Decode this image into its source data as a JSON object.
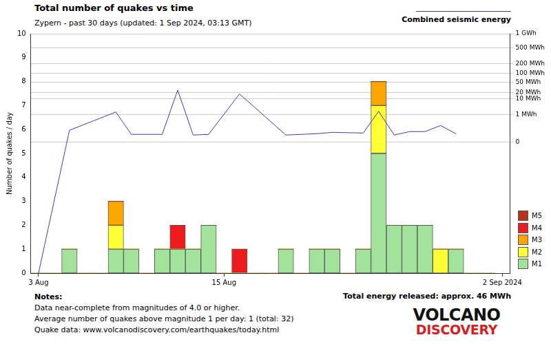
{
  "chart_data": {
    "type": "bar",
    "title": "Total number of quakes vs time",
    "subtitle": "Zypern - past 30 days (updated: 1 Sep 2024, 03:13 GMT)",
    "y_label": "Number of quakes / day",
    "categories": [
      "3 Aug",
      null,
      null,
      null,
      null,
      null,
      null,
      null,
      null,
      null,
      null,
      null,
      "15 Aug",
      null,
      null,
      null,
      null,
      null,
      null,
      null,
      null,
      null,
      null,
      null,
      null,
      null,
      null,
      null,
      null,
      null,
      "2 Sep 2024"
    ],
    "series": [
      {
        "name": "M1",
        "color": "#a3e29a",
        "values": [
          0,
          0,
          1,
          0,
          0,
          1,
          1,
          0,
          1,
          1,
          1,
          2,
          0,
          0,
          0,
          0,
          1,
          0,
          1,
          1,
          0,
          1,
          5,
          2,
          2,
          2,
          0,
          1,
          0,
          0,
          null
        ]
      },
      {
        "name": "M2",
        "color": "#ffff33",
        "values": [
          0,
          0,
          0,
          0,
          0,
          1,
          0,
          0,
          0,
          0,
          0,
          0,
          0,
          0,
          0,
          0,
          0,
          0,
          0,
          0,
          0,
          0,
          2,
          0,
          0,
          0,
          1,
          0,
          0,
          0,
          null
        ]
      },
      {
        "name": "M3",
        "color": "#ffa500",
        "values": [
          0,
          0,
          0,
          0,
          0,
          1,
          0,
          0,
          0,
          0,
          0,
          0,
          0,
          0,
          0,
          0,
          0,
          0,
          0,
          0,
          0,
          0,
          1,
          0,
          0,
          0,
          0,
          0,
          0,
          0,
          null
        ]
      },
      {
        "name": "M4",
        "color": "#ee1c1c",
        "values": [
          0,
          0,
          0,
          0,
          0,
          0,
          0,
          0,
          0,
          1,
          0,
          0,
          0,
          1,
          0,
          0,
          0,
          0,
          0,
          0,
          0,
          0,
          0,
          0,
          0,
          0,
          0,
          0,
          0,
          0,
          null
        ]
      },
      {
        "name": "M5",
        "color": "#b8321e",
        "values": [
          0,
          0,
          0,
          0,
          0,
          0,
          0,
          0,
          0,
          0,
          0,
          0,
          0,
          0,
          0,
          0,
          0,
          0,
          0,
          0,
          0,
          0,
          0,
          0,
          0,
          0,
          0,
          0,
          0,
          0,
          null
        ]
      },
      {
        "name": "Combined seismic energy",
        "type": "line",
        "axis": "y2",
        "color": "#3a3ab8",
        "values": [
          -2640,
          null,
          0.014,
          null,
          null,
          1.6,
          0.0016,
          null,
          0.0016,
          25,
          0.001,
          0.0016,
          null,
          17,
          null,
          null,
          0.001,
          null,
          0.0024,
          0.0053,
          null,
          0.0036,
          1.8,
          0.001,
          0.0075,
          0.0075,
          0.078,
          0.0024,
          null,
          null,
          null
        ]
      }
    ],
    "stacked": true,
    "ylim": [
      0,
      10
    ],
    "yticks": [
      0,
      1,
      2,
      3,
      4,
      5,
      6,
      7,
      8,
      9,
      10
    ],
    "y2lim": [
      -2640,
      1000
    ],
    "y2ticks": [
      0,
      {
        "value": 1,
        "label": "1 MWh"
      },
      {
        "value": 10,
        "label": "10 MWh"
      },
      {
        "value": 20,
        "label": "20 MWh"
      },
      {
        "value": 50,
        "label": "50 MWh"
      },
      {
        "value": 100,
        "label": "100 MWh"
      },
      {
        "value": 200,
        "label": "200 MWh"
      },
      {
        "value": 500,
        "label": "500 MWh"
      },
      {
        "value": 1000,
        "label": "1 GWh"
      }
    ],
    "grid": true,
    "legend": "right",
    "annotations": [
      "Total energy released: approx. 46 MWh"
    ],
    "notes": [
      "Notes:",
      "Data near-complete from magnitudes of 4.0 or higher.",
      "Average number of quakes above magnitude 1 per day: 1 (total: 32)",
      "Quake data: www.volcanodiscovery.com/earthquakes/today.html"
    ],
    "logo": [
      "VOLCANO",
      "DISCOVERY"
    ]
  }
}
